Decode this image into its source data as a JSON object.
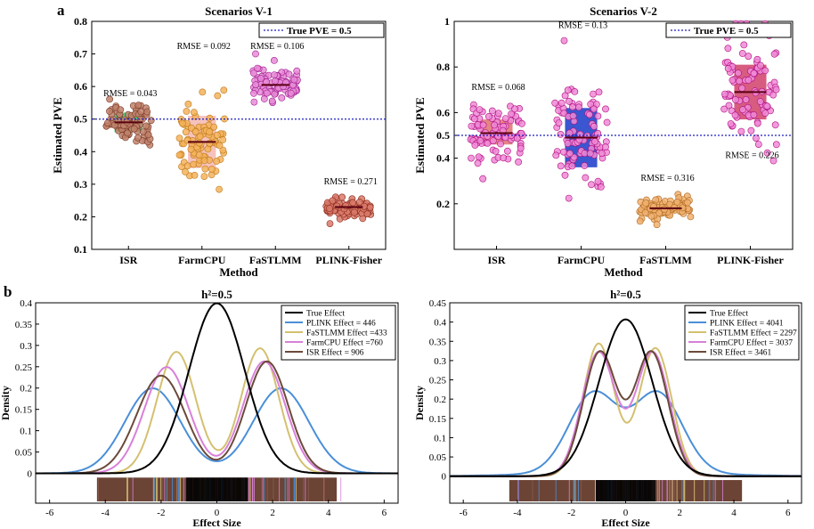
{
  "figure": {
    "panel_a_letter": "a",
    "panel_b_letter": "b"
  },
  "colors": {
    "true_line": "#1f1fbf",
    "isr_box": "#2ecc71",
    "isr_point": "#c0836b",
    "farm_box_a": "#f4b7b0",
    "farm_point_a": "#f3b35a",
    "fast_point_a": "#e88bd6",
    "plink_point_a": "#d97a6b",
    "isr_box_b": "#e07070",
    "pink_point": "#f08ad6",
    "farm_box_b": "#1838c8",
    "fast_point_b": "#f0b070",
    "plink_box_b": "#d0406a",
    "density_true": "#000000",
    "density_plink": "#4a8fd8",
    "density_fast": "#d4c070",
    "density_farm": "#d880d8",
    "density_isr": "#6b4a3a"
  },
  "chart_data": [
    {
      "id": "a1",
      "type": "scatter",
      "title": "Scenarios V-1",
      "xlabel": "Method",
      "ylabel": "Estimated PVE",
      "categories": [
        "ISR",
        "FarmCPU",
        "FaSTLMM",
        "PLINK-Fisher"
      ],
      "ylim": [
        0.1,
        0.8
      ],
      "yticks": [
        0.1,
        0.2,
        0.3,
        0.4,
        0.5,
        0.6,
        0.7,
        0.8
      ],
      "ytick_labels": [
        "0.1",
        "0.2",
        "0.3",
        "0.4",
        "0.5",
        "0.6",
        "0.7",
        "0.8"
      ],
      "true_value": 0.5,
      "legend": "True PVE = 0.5",
      "legend_position": "top-right",
      "groups": [
        {
          "label": "ISR",
          "rmse": "RMSE = 0.043",
          "rmse_y": 0.57,
          "mean": 0.49,
          "sd": 0.035,
          "box": [
            0.46,
            0.52
          ],
          "median": 0.49
        },
        {
          "label": "FarmCPU",
          "rmse": "RMSE = 0.092",
          "rmse_y": 0.715,
          "mean": 0.43,
          "sd": 0.06,
          "box": [
            0.35,
            0.51
          ],
          "median": 0.43
        },
        {
          "label": "FaSTLMM",
          "rmse": "RMSE = 0.106",
          "rmse_y": 0.715,
          "mean": 0.605,
          "sd": 0.025,
          "box": [
            0.59,
            0.62
          ],
          "median": 0.605
        },
        {
          "label": "PLINK-Fisher",
          "rmse": "RMSE = 0.271",
          "rmse_y": 0.3,
          "mean": 0.23,
          "sd": 0.015,
          "box": [
            0.22,
            0.24
          ],
          "median": 0.23
        }
      ]
    },
    {
      "id": "a2",
      "type": "scatter",
      "title": "Scenarios V-2",
      "xlabel": "Method",
      "ylabel": "Estimated PVE",
      "categories": [
        "ISR",
        "FarmCPU",
        "FaSTLMM",
        "PLINK-Fisher"
      ],
      "ylim": [
        0,
        1
      ],
      "yticks": [
        0.2,
        0.4,
        0.5,
        0.6,
        0.8,
        1
      ],
      "ytick_labels": [
        "0.2",
        "0.4",
        "0.5",
        "0.6",
        "0.8",
        "1"
      ],
      "true_value": 0.5,
      "legend": "True PVE = 0.5",
      "legend_position": "top-right",
      "groups": [
        {
          "label": "ISR",
          "rmse": "RMSE = 0.068",
          "rmse_y": 0.7,
          "mean": 0.51,
          "sd": 0.06,
          "box": [
            0.46,
            0.57
          ],
          "median": 0.51
        },
        {
          "label": "FarmCPU",
          "rmse": "RMSE = 0.13",
          "rmse_y": 0.97,
          "mean": 0.49,
          "sd": 0.13,
          "box": [
            0.36,
            0.62
          ],
          "median": 0.49
        },
        {
          "label": "FaSTLMM",
          "rmse": "RMSE = 0.316",
          "rmse_y": 0.3,
          "mean": 0.18,
          "sd": 0.025,
          "box": [
            0.16,
            0.2
          ],
          "median": 0.18
        },
        {
          "label": "PLINK-Fisher",
          "rmse": "RMSE = 0.226",
          "rmse_y": 0.4,
          "mean": 0.69,
          "sd": 0.13,
          "box": [
            0.57,
            0.81
          ],
          "median": 0.69
        }
      ]
    },
    {
      "id": "b1",
      "type": "line",
      "title": "h²=0.5",
      "xlabel": "Effect Size",
      "ylabel": "Density",
      "xlim": [
        -6.5,
        6.5
      ],
      "ylim": [
        -0.07,
        0.4
      ],
      "xticks": [
        -6,
        -4,
        -2,
        0,
        2,
        4,
        6
      ],
      "xtick_labels": [
        "-6",
        "-4",
        "-2",
        "0",
        "2",
        "4",
        "6"
      ],
      "yticks": [
        0,
        0.05,
        0.1,
        0.15,
        0.2,
        0.25,
        0.3,
        0.35,
        0.4
      ],
      "ytick_labels": [
        "0",
        "0.05",
        "0.1",
        "0.15",
        "0.2",
        "0.25",
        "0.3",
        "0.35",
        "0.4"
      ],
      "legend_position": "top-right",
      "series": [
        {
          "name": "True Effect",
          "mix": [
            [
              1.0,
              0,
              1.0
            ]
          ]
        },
        {
          "name": "PLINK Effect = 446",
          "mix": [
            [
              0.5,
              -2.3,
              1.0
            ],
            [
              0.5,
              2.3,
              1.0
            ]
          ]
        },
        {
          "name": "FaSTLMM Effect =433",
          "mix": [
            [
              0.5,
              -1.45,
              0.7
            ],
            [
              0.5,
              1.55,
              0.68
            ]
          ]
        },
        {
          "name": "FarmCPU Effect =760",
          "mix": [
            [
              0.5,
              -1.8,
              0.8
            ],
            [
              0.5,
              1.7,
              0.76
            ]
          ]
        },
        {
          "name": "ISR Effect = 906",
          "mix": [
            [
              0.5,
              -2.0,
              0.87
            ],
            [
              0.5,
              1.8,
              0.76
            ]
          ]
        }
      ]
    },
    {
      "id": "b2",
      "type": "line",
      "title": "h²=0.5",
      "xlabel": "Effect Size",
      "ylabel": "Density",
      "xlim": [
        -6.5,
        6.5
      ],
      "ylim": [
        -0.07,
        0.45
      ],
      "xticks": [
        -6,
        -4,
        -2,
        0,
        2,
        4,
        6
      ],
      "xtick_labels": [
        "-6",
        "-4",
        "-2",
        "0",
        "2",
        "4",
        "6"
      ],
      "yticks": [
        0,
        0.05,
        0.1,
        0.15,
        0.2,
        0.25,
        0.3,
        0.35,
        0.4,
        0.45
      ],
      "ytick_labels": [
        "0",
        "0.05",
        "0.1",
        "0.15",
        "0.2",
        "0.25",
        "0.3",
        "0.35",
        "0.4",
        "0.45"
      ],
      "legend_position": "top-right",
      "series": [
        {
          "name": "True Effect",
          "mix": [
            [
              1.0,
              0,
              0.98
            ]
          ]
        },
        {
          "name": "PLINK Effect = 4041",
          "mix": [
            [
              0.5,
              -1.2,
              0.9
            ],
            [
              0.5,
              1.2,
              0.9
            ],
            [
              0.08,
              0,
              3.0
            ]
          ]
        },
        {
          "name": "FaSTLMM Effect = 2297",
          "mix": [
            [
              0.5,
              -1.0,
              0.58
            ],
            [
              0.5,
              1.1,
              0.6
            ]
          ]
        },
        {
          "name": "FarmCPU Effect = 3037",
          "mix": [
            [
              0.5,
              -1.0,
              0.62
            ],
            [
              0.5,
              1.0,
              0.62
            ]
          ]
        },
        {
          "name": "ISR Effect = 3461",
          "mix": [
            [
              0.5,
              -0.95,
              0.62
            ],
            [
              0.5,
              0.95,
              0.62
            ]
          ]
        }
      ]
    }
  ]
}
